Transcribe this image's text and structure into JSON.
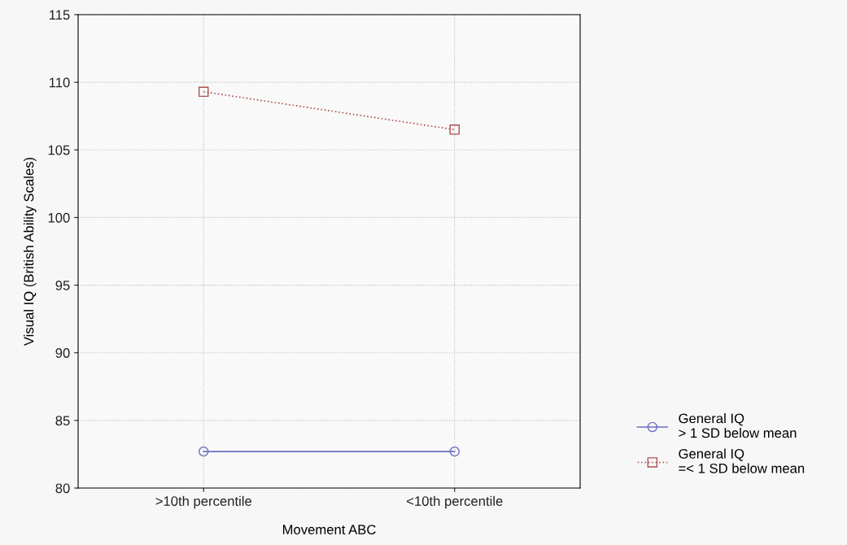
{
  "chart_data": {
    "type": "line",
    "xlabel": "Movement ABC",
    "ylabel": "Visual IQ (British Ability Scales)",
    "categories": [
      ">10th percentile",
      "<10th percentile"
    ],
    "series": [
      {
        "name": "General IQ\n> 1 SD below mean",
        "color": "#6a6fc0",
        "values": [
          82.7,
          82.7
        ],
        "marker": "circle",
        "line_style": "solid"
      },
      {
        "name": "General IQ\n=< 1 SD below mean",
        "color": "#b05050",
        "values": [
          109.3,
          106.5
        ],
        "marker": "square",
        "line_style": "dotted"
      }
    ],
    "ylim": [
      80,
      115
    ],
    "yticks": [
      80,
      85,
      90,
      95,
      100,
      105,
      110,
      115
    ],
    "grid": true,
    "legend": "bottom right"
  }
}
